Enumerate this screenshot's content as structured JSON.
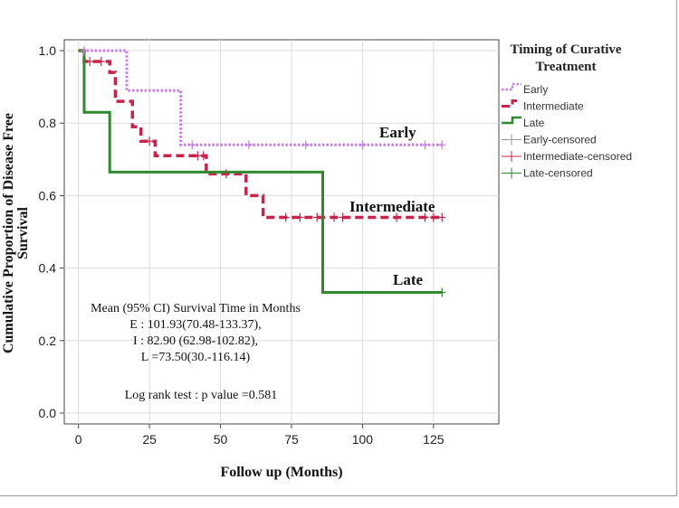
{
  "chart_data": {
    "type": "line",
    "subtype": "kaplan-meier step curves",
    "ylabel_line1": "Cumulative Proportion of Disease Free",
    "ylabel_line2": "Survival",
    "xlabel": "Follow up (Months)",
    "xlim": [
      -5,
      148
    ],
    "ylim": [
      -0.03,
      1.03
    ],
    "xticks": [
      "0",
      "25",
      "50",
      "75",
      "100",
      "125"
    ],
    "yticks": [
      "0.0",
      "0.2",
      "0.4",
      "0.6",
      "0.8",
      "1.0"
    ],
    "grid": true,
    "legend_title_line1": "Timing of Curative",
    "legend_title_line2": "Treatment",
    "legend_position": "top-right outside",
    "series": [
      {
        "name": "Early",
        "color": "#c77de8",
        "dash": "dotted",
        "steps": [
          [
            0,
            1.0
          ],
          [
            17,
            0.89
          ],
          [
            36,
            0.74
          ],
          [
            128,
            0.74
          ]
        ],
        "censored": [
          2,
          40,
          60,
          80,
          100,
          122,
          128
        ],
        "censored_name": "Early-censored",
        "curve_label": "Early"
      },
      {
        "name": "Intermediate",
        "color": "#c8244a",
        "dash": "dashed",
        "steps": [
          [
            0,
            1.0
          ],
          [
            2,
            0.97
          ],
          [
            11,
            0.94
          ],
          [
            13,
            0.86
          ],
          [
            19,
            0.79
          ],
          [
            22,
            0.75
          ],
          [
            27,
            0.71
          ],
          [
            45,
            0.66
          ],
          [
            59,
            0.6
          ],
          [
            65,
            0.54
          ],
          [
            128,
            0.54
          ]
        ],
        "censored": [
          4,
          8,
          25,
          42,
          44,
          52,
          73,
          78,
          84,
          90,
          93,
          112,
          122,
          125,
          128
        ],
        "censored_name": "Intermediate-censored",
        "curve_label": "Intermediate"
      },
      {
        "name": "Late",
        "color": "#2f8a2f",
        "dash": "solid",
        "steps": [
          [
            0,
            1.0
          ],
          [
            2,
            0.83
          ],
          [
            11,
            0.665
          ],
          [
            86,
            0.333
          ],
          [
            128,
            0.333
          ]
        ],
        "censored": [
          128
        ],
        "censored_name": "Late-censored",
        "curve_label": "Late"
      }
    ],
    "annotation": {
      "line1": "Mean (95% CI) Survival Time in Months",
      "line2": "E : 101.93(70.48-133.37),",
      "line3": "I : 82.90 (62.98-102.82),",
      "line4": "L =73.50(30.-116.14)",
      "logrank": "Log rank test : p value =0.581"
    }
  }
}
